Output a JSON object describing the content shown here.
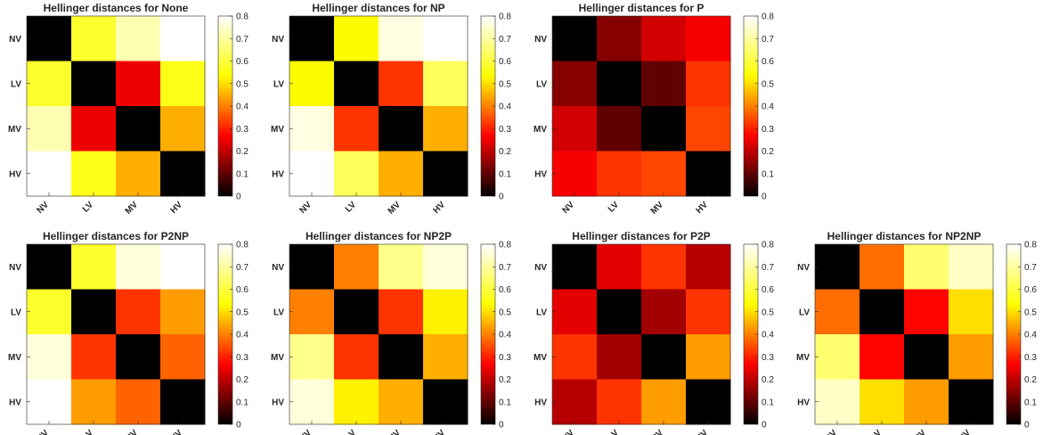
{
  "colormap": {
    "name": "hot",
    "stops": [
      "#000000",
      "#ff0000",
      "#ffff00",
      "#ffffff"
    ]
  },
  "chart_data": [
    {
      "type": "heatmap",
      "title": "Hellinger distances for None",
      "x_categories": [
        "NV",
        "LV",
        "MV",
        "HV"
      ],
      "y_categories": [
        "NV",
        "LV",
        "MV",
        "HV"
      ],
      "values": [
        [
          0.0,
          0.58,
          0.72,
          0.8
        ],
        [
          0.58,
          0.0,
          0.25,
          0.56
        ],
        [
          0.72,
          0.25,
          0.0,
          0.45
        ],
        [
          0.8,
          0.56,
          0.45,
          0.0
        ]
      ],
      "colorbar": {
        "clim": [
          0,
          0.8
        ],
        "ticks": [
          0,
          0.1,
          0.2,
          0.3,
          0.4,
          0.5,
          0.6,
          0.7,
          0.8
        ],
        "tick_labels": [
          "0",
          "0.1",
          "0.2",
          "0.3",
          "0.4",
          "0.5",
          "0.6",
          "0.7",
          "0.8"
        ]
      }
    },
    {
      "type": "heatmap",
      "title": "Hellinger distances for NP",
      "x_categories": [
        "NV",
        "LV",
        "MV",
        "HV"
      ],
      "y_categories": [
        "NV",
        "LV",
        "MV",
        "HV"
      ],
      "values": [
        [
          0.0,
          0.53,
          0.77,
          0.8
        ],
        [
          0.53,
          0.0,
          0.32,
          0.63
        ],
        [
          0.77,
          0.32,
          0.0,
          0.45
        ],
        [
          0.8,
          0.63,
          0.45,
          0.0
        ]
      ],
      "colorbar": {
        "clim": [
          0,
          0.8
        ],
        "ticks": [
          0,
          0.1,
          0.2,
          0.3,
          0.4,
          0.5,
          0.6,
          0.7,
          0.8
        ],
        "tick_labels": [
          "0",
          "0.1",
          "0.2",
          "0.3",
          "0.4",
          "0.5",
          "0.6",
          "0.7",
          "0.8"
        ]
      }
    },
    {
      "type": "heatmap",
      "title": "Hellinger distances for P",
      "x_categories": [
        "NV",
        "LV",
        "MV",
        "HV"
      ],
      "y_categories": [
        "NV",
        "LV",
        "MV",
        "HV"
      ],
      "values": [
        [
          0.0,
          0.14,
          0.22,
          0.26
        ],
        [
          0.14,
          0.0,
          0.1,
          0.32
        ],
        [
          0.22,
          0.1,
          0.0,
          0.34
        ],
        [
          0.26,
          0.32,
          0.34,
          0.0
        ]
      ],
      "colorbar": {
        "clim": [
          0,
          0.8
        ],
        "ticks": [
          0,
          0.1,
          0.2,
          0.3,
          0.4,
          0.5,
          0.6,
          0.7,
          0.8
        ],
        "tick_labels": [
          "0",
          "0.1",
          "0.2",
          "0.3",
          "0.4",
          "0.5",
          "0.6",
          "0.7",
          "0.8"
        ]
      }
    },
    {
      "type": "heatmap",
      "title": "Hellinger distances for P2NP",
      "x_categories": [
        "NV",
        "LV",
        "MV",
        "HV"
      ],
      "y_categories": [
        "NV",
        "LV",
        "MV",
        "HV"
      ],
      "values": [
        [
          0.0,
          0.58,
          0.76,
          0.8
        ],
        [
          0.58,
          0.0,
          0.32,
          0.43
        ],
        [
          0.76,
          0.32,
          0.0,
          0.37
        ],
        [
          0.8,
          0.43,
          0.37,
          0.0
        ]
      ],
      "colorbar": {
        "clim": [
          0,
          0.8
        ],
        "ticks": [
          0,
          0.1,
          0.2,
          0.3,
          0.4,
          0.5,
          0.6,
          0.7,
          0.8
        ],
        "tick_labels": [
          "0",
          "0.1",
          "0.2",
          "0.3",
          "0.4",
          "0.5",
          "0.6",
          "0.7",
          "0.8"
        ]
      }
    },
    {
      "type": "heatmap",
      "title": "Hellinger distances for NP2P",
      "x_categories": [
        "NV",
        "LV",
        "MV",
        "HV"
      ],
      "y_categories": [
        "NV",
        "LV",
        "MV",
        "HV"
      ],
      "values": [
        [
          0.0,
          0.4,
          0.68,
          0.76
        ],
        [
          0.4,
          0.0,
          0.32,
          0.52
        ],
        [
          0.68,
          0.32,
          0.0,
          0.45
        ],
        [
          0.76,
          0.52,
          0.45,
          0.0
        ]
      ],
      "colorbar": {
        "clim": [
          0,
          0.8
        ],
        "ticks": [
          0,
          0.1,
          0.2,
          0.3,
          0.4,
          0.5,
          0.6,
          0.7,
          0.8
        ],
        "tick_labels": [
          "0",
          "0.1",
          "0.2",
          "0.3",
          "0.4",
          "0.5",
          "0.6",
          "0.7",
          "0.8"
        ]
      }
    },
    {
      "type": "heatmap",
      "title": "Hellinger distances for P2P",
      "x_categories": [
        "NV",
        "LV",
        "MV",
        "HV"
      ],
      "y_categories": [
        "NV",
        "LV",
        "MV",
        "HV"
      ],
      "values": [
        [
          0.0,
          0.24,
          0.32,
          0.19
        ],
        [
          0.24,
          0.0,
          0.17,
          0.32
        ],
        [
          0.32,
          0.17,
          0.0,
          0.43
        ],
        [
          0.19,
          0.32,
          0.43,
          0.0
        ]
      ],
      "colorbar": {
        "clim": [
          0,
          0.8
        ],
        "ticks": [
          0,
          0.1,
          0.2,
          0.3,
          0.4,
          0.5,
          0.6,
          0.7,
          0.8
        ],
        "tick_labels": [
          "0",
          "0.1",
          "0.2",
          "0.3",
          "0.4",
          "0.5",
          "0.6",
          "0.7",
          "0.8"
        ]
      }
    },
    {
      "type": "heatmap",
      "title": "Hellinger distances for NP2NP",
      "x_categories": [
        "NV",
        "LV",
        "MV",
        "HV"
      ],
      "y_categories": [
        "NV",
        "LV",
        "MV",
        "HV"
      ],
      "values": [
        [
          0.0,
          0.38,
          0.65,
          0.74
        ],
        [
          0.38,
          0.0,
          0.27,
          0.5
        ],
        [
          0.65,
          0.27,
          0.0,
          0.43
        ],
        [
          0.74,
          0.5,
          0.43,
          0.0
        ]
      ],
      "colorbar": {
        "clim": [
          0,
          0.8
        ],
        "ticks": [
          0,
          0.1,
          0.2,
          0.3,
          0.4,
          0.5,
          0.6,
          0.7,
          0.8
        ],
        "tick_labels": [
          "0",
          "0.1",
          "0.2",
          "0.3",
          "0.4",
          "0.5",
          "0.6",
          "0.7",
          "0.8"
        ]
      }
    }
  ]
}
